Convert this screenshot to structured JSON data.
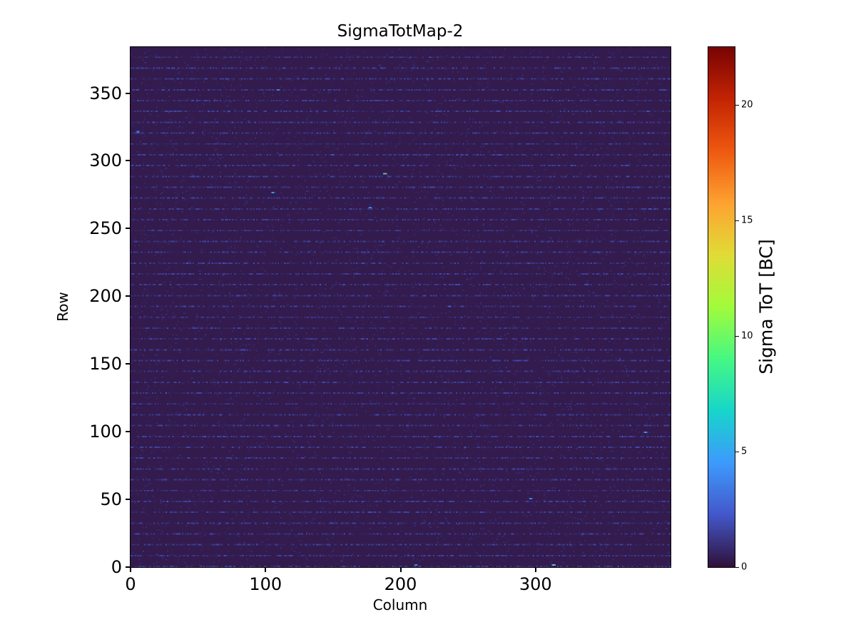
{
  "figure": {
    "background": "#ffffff"
  },
  "chart_data": {
    "type": "heatmap",
    "title": "SigmaTotMap-2",
    "xlabel": "Column",
    "ylabel": "Row",
    "colorbar_label": "Sigma ToT [BC]",
    "x_range": [
      0,
      400
    ],
    "y_range": [
      0,
      384
    ],
    "x_ticks": [
      0,
      100,
      200,
      300
    ],
    "y_ticks": [
      0,
      50,
      100,
      150,
      200,
      250,
      300,
      350
    ],
    "colorbar_ticks": [
      0,
      5,
      10,
      15,
      20
    ],
    "value_range": [
      0,
      22.5
    ],
    "colormap": "turbo",
    "colormap_stops": [
      {
        "t": 0.0,
        "c": "#30123b"
      },
      {
        "t": 0.1,
        "c": "#4458cb"
      },
      {
        "t": 0.2,
        "c": "#3e9bfe"
      },
      {
        "t": 0.3,
        "c": "#18d6cb"
      },
      {
        "t": 0.4,
        "c": "#46f884"
      },
      {
        "t": 0.5,
        "c": "#a2fc3c"
      },
      {
        "t": 0.6,
        "c": "#e1dd37"
      },
      {
        "t": 0.7,
        "c": "#fea331"
      },
      {
        "t": 0.8,
        "c": "#ef5a11"
      },
      {
        "t": 0.9,
        "c": "#c42503"
      },
      {
        "t": 1.0,
        "c": "#7a0403"
      }
    ],
    "background_value": 0.3,
    "stripe_rows_every": 8,
    "stripe_value_max": 1.8,
    "noise_seed": 1337,
    "hot_pixels": [
      {
        "col": 109,
        "row": 352,
        "value": 6
      },
      {
        "col": 5,
        "row": 321,
        "value": 5
      },
      {
        "col": 188,
        "row": 290,
        "value": 16
      },
      {
        "col": 105,
        "row": 276,
        "value": 6
      },
      {
        "col": 177,
        "row": 265,
        "value": 5
      },
      {
        "col": 236,
        "row": 192,
        "value": 3.5
      },
      {
        "col": 381,
        "row": 99,
        "value": 6
      },
      {
        "col": 296,
        "row": 50,
        "value": 5
      },
      {
        "col": 211,
        "row": 1,
        "value": 6
      },
      {
        "col": 313,
        "row": 1,
        "value": 15
      }
    ],
    "grid": false,
    "legend": "colorbar-right"
  }
}
